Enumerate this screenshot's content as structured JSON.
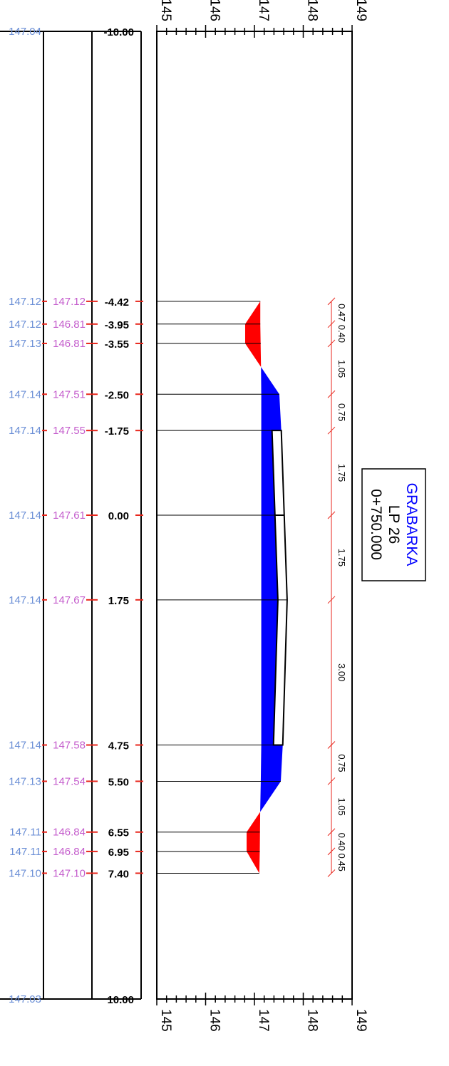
{
  "colors": {
    "line": "#000000",
    "tick_red": "#e8261c",
    "ground_blue": "#6b8fd6",
    "design_magenta": "#c45ccc",
    "cut_fill": "#ff0000",
    "fill_fill": "#0000ff",
    "title_text": "#0000ff"
  },
  "title_box": {
    "line1": "GRABARKA",
    "line2": "LP  26",
    "line3": "0+750.000"
  },
  "scale_labels": [
    "145",
    "146",
    "147",
    "148",
    "149"
  ],
  "end_rows": {
    "top": {
      "ground": "147.04",
      "offset": "-10.00"
    },
    "bottom": {
      "ground": "147.03",
      "offset": "10.00"
    }
  },
  "rows": [
    {
      "ground": "147.12",
      "design": "147.12",
      "offset": "-4.42"
    },
    {
      "ground": "147.12",
      "design": "146.81",
      "offset": "-3.95"
    },
    {
      "ground": "147.13",
      "design": "146.81",
      "offset": "-3.55"
    },
    {
      "ground": "147.14",
      "design": "147.51",
      "offset": "-2.50"
    },
    {
      "ground": "147.14",
      "design": "147.55",
      "offset": "-1.75"
    },
    {
      "ground": "147.14",
      "design": "147.61",
      "offset": "0.00"
    },
    {
      "ground": "147.14",
      "design": "147.67",
      "offset": "1.75"
    },
    {
      "ground": "147.14",
      "design": "147.58",
      "offset": "4.75"
    },
    {
      "ground": "147.13",
      "design": "147.54",
      "offset": "5.50"
    },
    {
      "ground": "147.11",
      "design": "146.84",
      "offset": "6.55"
    },
    {
      "ground": "147.11",
      "design": "146.84",
      "offset": "6.95"
    },
    {
      "ground": "147.10",
      "design": "147.10",
      "offset": "7.40"
    }
  ],
  "widths": [
    "0.47",
    "0.40",
    "1.05",
    "0.75",
    "1.75",
    "1.75",
    "3.00",
    "0.75",
    "1.05",
    "0.40",
    "0.45"
  ]
}
